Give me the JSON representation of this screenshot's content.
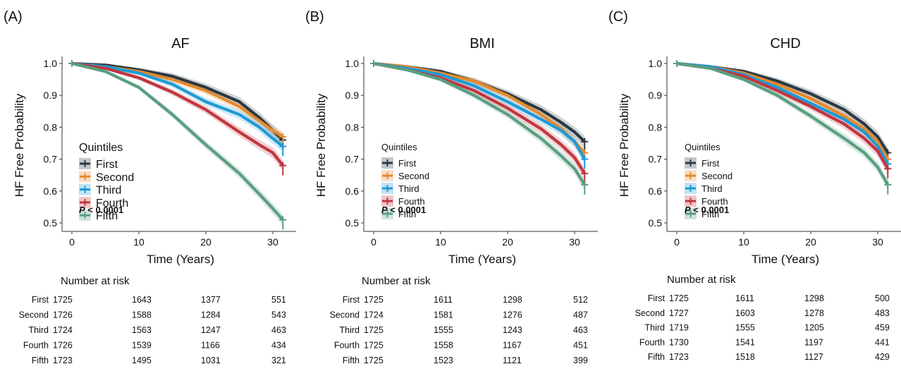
{
  "chart_data": [
    {
      "type": "line",
      "panel_label": "(A)",
      "title": "AF",
      "xlabel": "Time (Years)",
      "ylabel": "HF Free Probability",
      "xlim": [
        0,
        32
      ],
      "ylim": [
        0.5,
        1.0
      ],
      "x_ticks": [
        "0",
        "10",
        "20",
        "30"
      ],
      "y_ticks": [
        "0.5",
        "0.6",
        "0.7",
        "0.8",
        "0.9",
        "1.0"
      ],
      "legend_title": "Quintiles",
      "legend_position": "middle-left",
      "p_value": "P < 0.0001",
      "series": [
        {
          "name": "First",
          "color": "#2b3a46",
          "x": [
            0,
            5,
            10,
            15,
            20,
            25,
            28,
            30,
            31.5
          ],
          "y": [
            1.0,
            0.995,
            0.98,
            0.96,
            0.925,
            0.88,
            0.83,
            0.79,
            0.76
          ]
        },
        {
          "name": "Second",
          "color": "#e58a2e",
          "x": [
            0,
            5,
            10,
            15,
            20,
            25,
            28,
            30,
            31.5
          ],
          "y": [
            1.0,
            0.99,
            0.975,
            0.95,
            0.915,
            0.865,
            0.82,
            0.79,
            0.77
          ]
        },
        {
          "name": "Third",
          "color": "#1f9ad6",
          "x": [
            0,
            5,
            10,
            15,
            20,
            25,
            28,
            30,
            31.5
          ],
          "y": [
            1.0,
            0.99,
            0.97,
            0.935,
            0.88,
            0.84,
            0.8,
            0.765,
            0.74
          ]
        },
        {
          "name": "Fourth",
          "color": "#c1363f",
          "x": [
            0,
            5,
            10,
            15,
            20,
            25,
            28,
            30,
            31.5
          ],
          "y": [
            1.0,
            0.985,
            0.955,
            0.91,
            0.855,
            0.785,
            0.745,
            0.72,
            0.68
          ]
        },
        {
          "name": "Fifth",
          "color": "#5a9e80",
          "x": [
            0,
            5,
            10,
            15,
            20,
            25,
            28,
            30,
            31.5
          ],
          "y": [
            1.0,
            0.975,
            0.925,
            0.84,
            0.745,
            0.655,
            0.59,
            0.545,
            0.51
          ]
        }
      ],
      "risk_table": {
        "title": "Number at risk",
        "rows": [
          {
            "label": "First",
            "values": [
              "1725",
              "1643",
              "1377",
              "551"
            ]
          },
          {
            "label": "Second",
            "values": [
              "1726",
              "1588",
              "1284",
              "543"
            ]
          },
          {
            "label": "Third",
            "values": [
              "1724",
              "1563",
              "1247",
              "463"
            ]
          },
          {
            "label": "Fourth",
            "values": [
              "1726",
              "1539",
              "1166",
              "434"
            ]
          },
          {
            "label": "Fifth",
            "values": [
              "1723",
              "1495",
              "1031",
              "321"
            ]
          }
        ]
      }
    },
    {
      "type": "line",
      "panel_label": "(B)",
      "title": "BMI",
      "xlabel": "Time (Years)",
      "ylabel": "HF Free Probability",
      "xlim": [
        0,
        32
      ],
      "ylim": [
        0.5,
        1.0
      ],
      "x_ticks": [
        "0",
        "10",
        "20",
        "30"
      ],
      "y_ticks": [
        "0.5",
        "0.6",
        "0.7",
        "0.8",
        "0.9",
        "1.0"
      ],
      "legend_title": "Quintiles",
      "legend_position": "middle-left",
      "p_value": "P < 0.0001",
      "series": [
        {
          "name": "First",
          "color": "#2b3a46",
          "x": [
            0,
            5,
            10,
            15,
            20,
            25,
            28,
            30,
            31.5
          ],
          "y": [
            1.0,
            0.99,
            0.975,
            0.945,
            0.905,
            0.855,
            0.815,
            0.785,
            0.755
          ]
        },
        {
          "name": "Second",
          "color": "#e58a2e",
          "x": [
            0,
            5,
            10,
            15,
            20,
            25,
            28,
            30,
            31.5
          ],
          "y": [
            1.0,
            0.99,
            0.97,
            0.945,
            0.9,
            0.84,
            0.795,
            0.755,
            0.72
          ]
        },
        {
          "name": "Third",
          "color": "#1f9ad6",
          "x": [
            0,
            5,
            10,
            15,
            20,
            25,
            28,
            30,
            31.5
          ],
          "y": [
            1.0,
            0.985,
            0.965,
            0.93,
            0.88,
            0.825,
            0.79,
            0.755,
            0.7
          ]
        },
        {
          "name": "Fourth",
          "color": "#c1363f",
          "x": [
            0,
            5,
            10,
            15,
            20,
            25,
            28,
            30,
            31.5
          ],
          "y": [
            1.0,
            0.98,
            0.955,
            0.915,
            0.86,
            0.795,
            0.745,
            0.705,
            0.655
          ]
        },
        {
          "name": "Fifth",
          "color": "#5a9e80",
          "x": [
            0,
            5,
            10,
            15,
            20,
            25,
            28,
            30,
            31.5
          ],
          "y": [
            1.0,
            0.98,
            0.95,
            0.9,
            0.84,
            0.765,
            0.71,
            0.67,
            0.62
          ]
        }
      ],
      "risk_table": {
        "title": "Number at risk",
        "rows": [
          {
            "label": "First",
            "values": [
              "1725",
              "1611",
              "1298",
              "512"
            ]
          },
          {
            "label": "Second",
            "values": [
              "1724",
              "1581",
              "1276",
              "487"
            ]
          },
          {
            "label": "Third",
            "values": [
              "1725",
              "1555",
              "1243",
              "463"
            ]
          },
          {
            "label": "Fourth",
            "values": [
              "1725",
              "1558",
              "1167",
              "451"
            ]
          },
          {
            "label": "Fifth",
            "values": [
              "1725",
              "1523",
              "1121",
              "399"
            ]
          }
        ]
      }
    },
    {
      "type": "line",
      "panel_label": "(C)",
      "title": "CHD",
      "xlabel": "Time (Years)",
      "ylabel": "HF Free Probability",
      "xlim": [
        0,
        32
      ],
      "ylim": [
        0.5,
        1.0
      ],
      "x_ticks": [
        "0",
        "10",
        "20",
        "30"
      ],
      "y_ticks": [
        "0.5",
        "0.6",
        "0.7",
        "0.8",
        "0.9",
        "1.0"
      ],
      "legend_title": "Quintiles",
      "legend_position": "middle-left",
      "p_value": "P < 0.0001",
      "series": [
        {
          "name": "First",
          "color": "#2b3a46",
          "x": [
            0,
            5,
            10,
            15,
            20,
            25,
            28,
            30,
            31.5
          ],
          "y": [
            1.0,
            0.99,
            0.975,
            0.945,
            0.905,
            0.855,
            0.81,
            0.77,
            0.72
          ]
        },
        {
          "name": "Second",
          "color": "#e58a2e",
          "x": [
            0,
            5,
            10,
            15,
            20,
            25,
            28,
            30,
            31.5
          ],
          "y": [
            1.0,
            0.99,
            0.97,
            0.935,
            0.89,
            0.835,
            0.795,
            0.755,
            0.7
          ]
        },
        {
          "name": "Third",
          "color": "#1f9ad6",
          "x": [
            0,
            5,
            10,
            15,
            20,
            25,
            28,
            30,
            31.5
          ],
          "y": [
            1.0,
            0.99,
            0.965,
            0.925,
            0.875,
            0.825,
            0.785,
            0.74,
            0.685
          ]
        },
        {
          "name": "Fourth",
          "color": "#c1363f",
          "x": [
            0,
            5,
            10,
            15,
            20,
            25,
            28,
            30,
            31.5
          ],
          "y": [
            1.0,
            0.985,
            0.96,
            0.915,
            0.865,
            0.81,
            0.765,
            0.725,
            0.67
          ]
        },
        {
          "name": "Fifth",
          "color": "#5a9e80",
          "x": [
            0,
            5,
            10,
            15,
            20,
            25,
            28,
            30,
            31.5
          ],
          "y": [
            1.0,
            0.985,
            0.95,
            0.9,
            0.835,
            0.765,
            0.72,
            0.675,
            0.62
          ]
        }
      ],
      "risk_table": {
        "title": "Number at risk",
        "rows": [
          {
            "label": "First",
            "values": [
              "1725",
              "1611",
              "1298",
              "500"
            ]
          },
          {
            "label": "Second",
            "values": [
              "1727",
              "1603",
              "1278",
              "483"
            ]
          },
          {
            "label": "Third",
            "values": [
              "1719",
              "1555",
              "1205",
              "459"
            ]
          },
          {
            "label": "Fourth",
            "values": [
              "1730",
              "1541",
              "1197",
              "441"
            ]
          },
          {
            "label": "Fifth",
            "values": [
              "1723",
              "1518",
              "1127",
              "429"
            ]
          }
        ]
      }
    }
  ]
}
